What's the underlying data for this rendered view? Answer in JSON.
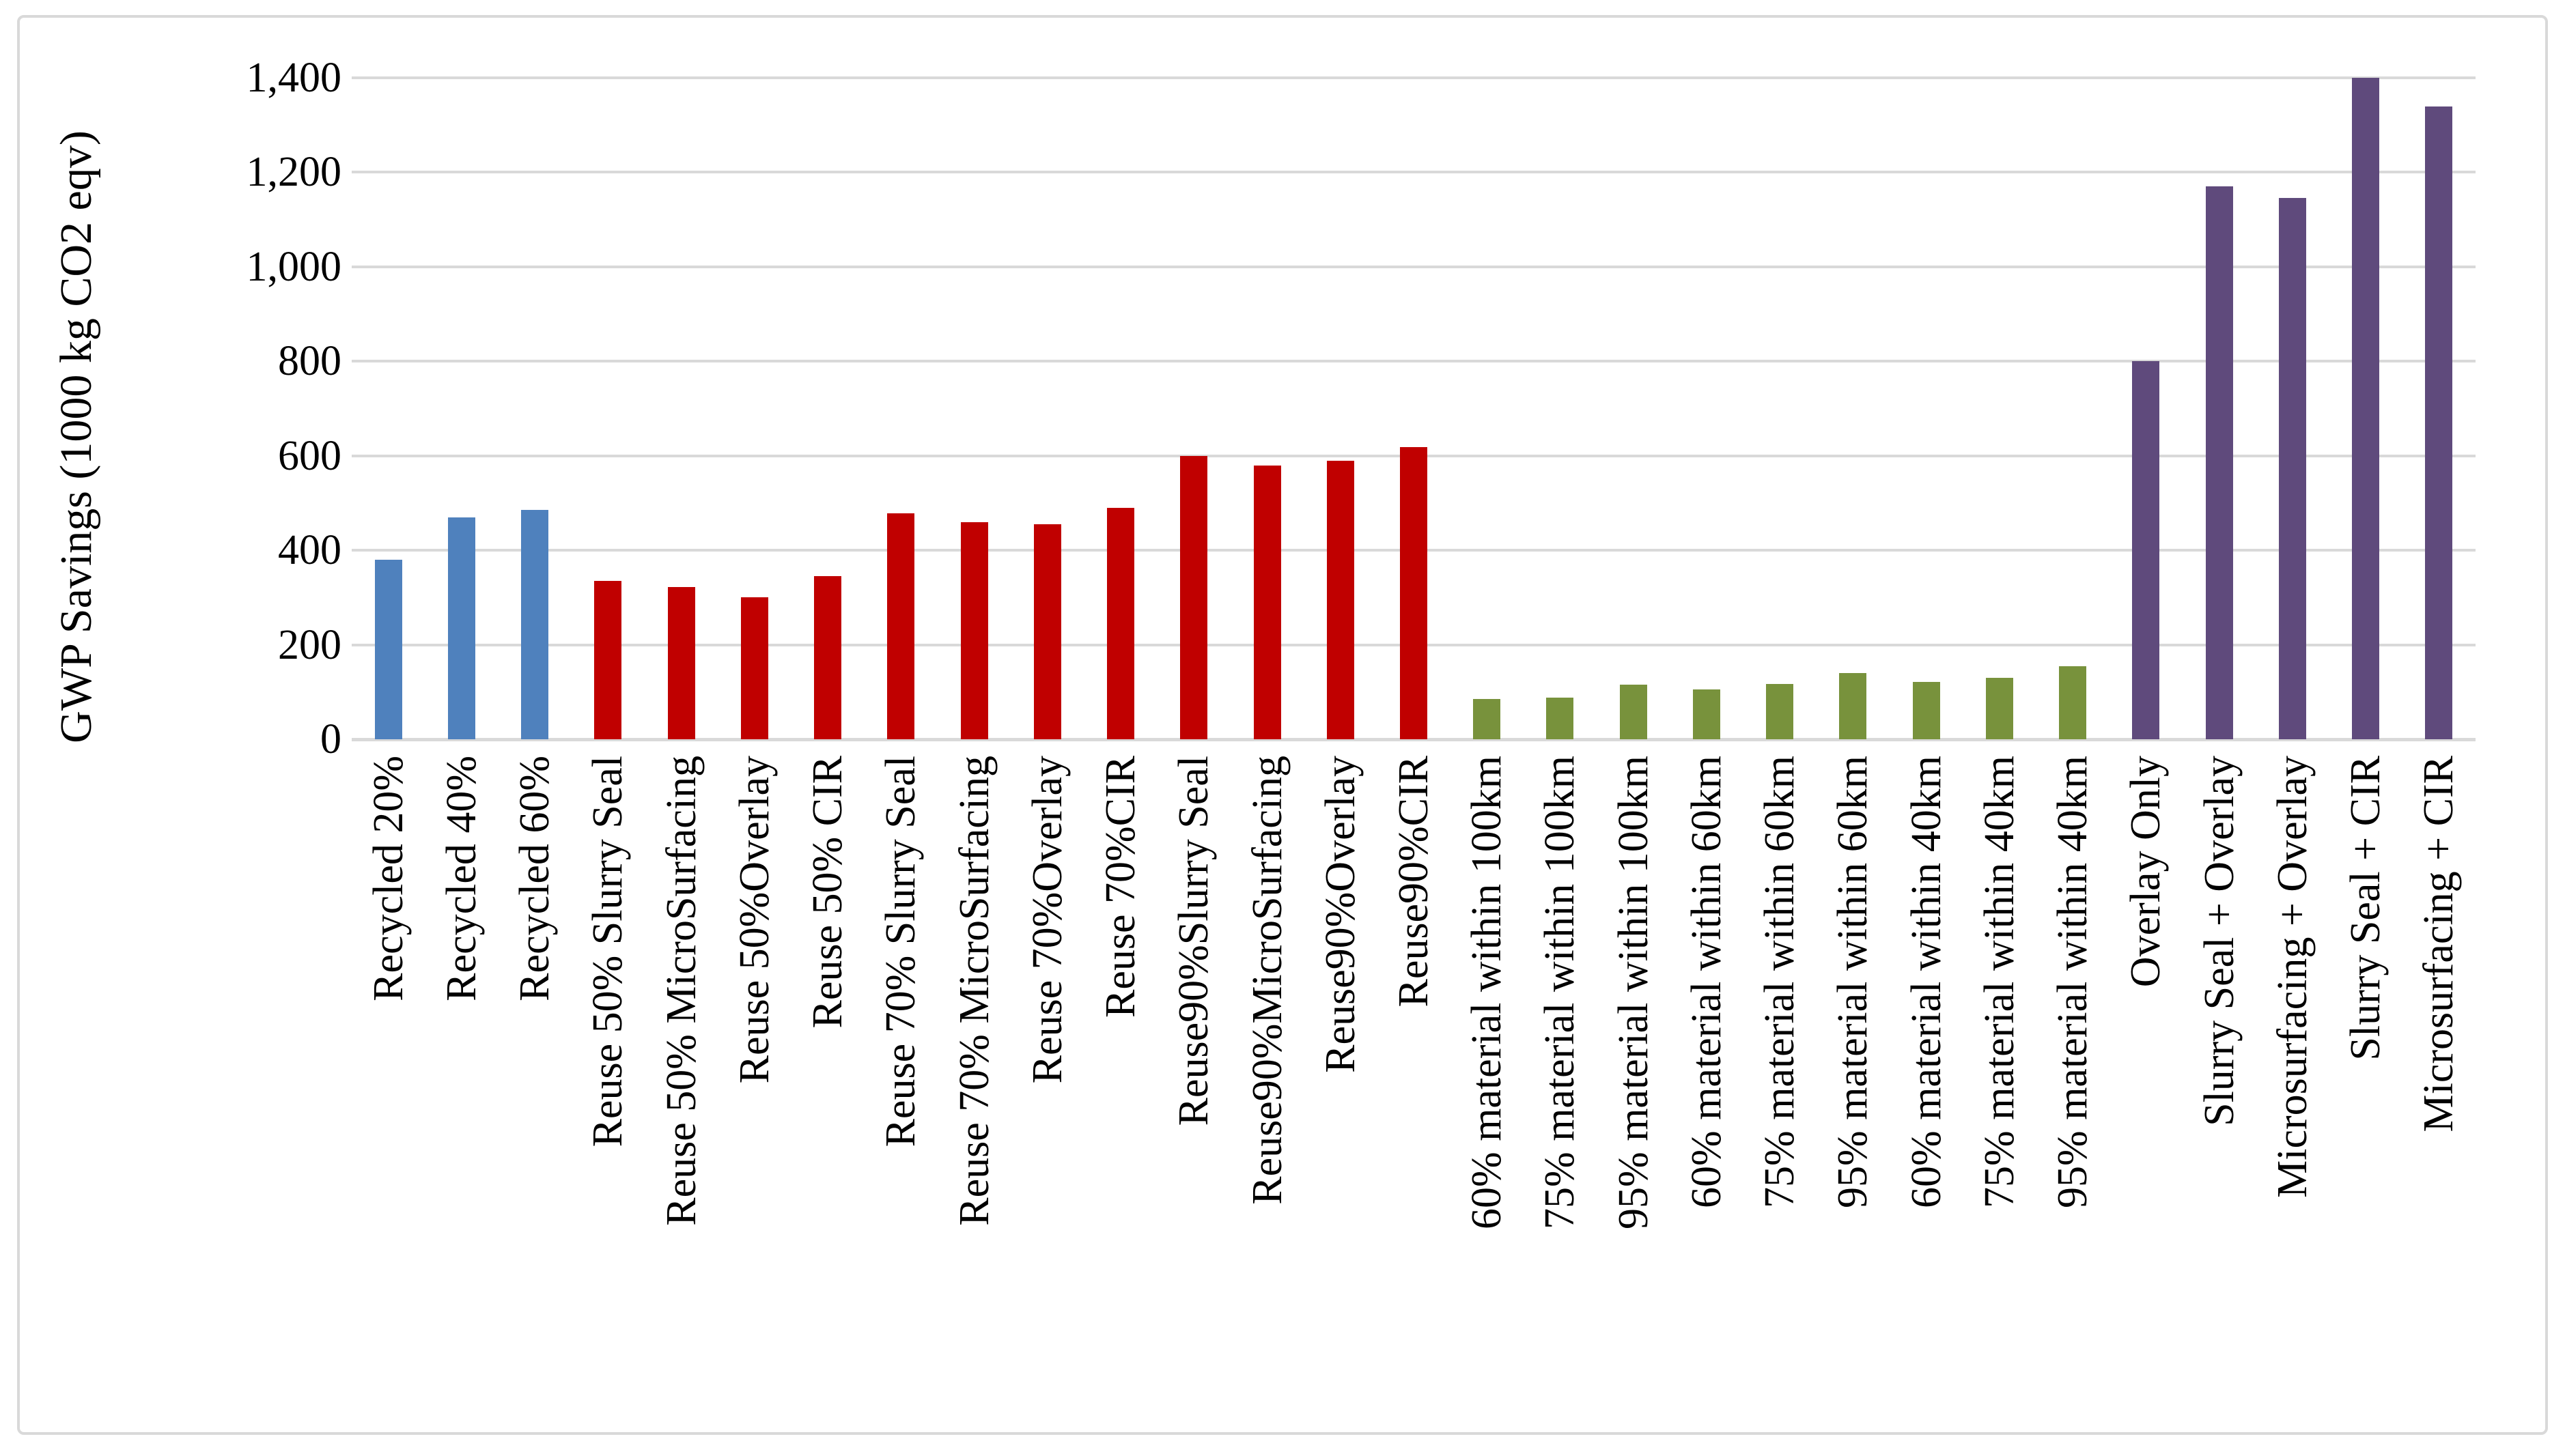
{
  "figure": {
    "background": "#ffffff",
    "border_color": "#d9d9d9"
  },
  "chart_data": {
    "type": "bar",
    "title": "",
    "xlabel": "",
    "ylabel": "GWP Savings (1000 kg CO2 eqv)",
    "ylim": [
      0,
      1400
    ],
    "ytick_values": [
      0,
      200,
      400,
      600,
      800,
      1000,
      1200,
      1400
    ],
    "ytick_labels": [
      "0",
      "200",
      "400",
      "600",
      "800",
      "1,000",
      "1,200",
      "1,400"
    ],
    "grid": "horizontal",
    "gridline_color": "#d9d9d9",
    "legend": "none",
    "bar_groups": [
      {
        "name": "recycled-content",
        "color": "#4f81bd",
        "items": [
          {
            "label": "Recycled 20%",
            "value": 380
          },
          {
            "label": "Recycled 40%",
            "value": 470
          },
          {
            "label": "Recycled 60%",
            "value": 485
          }
        ]
      },
      {
        "name": "reuse",
        "color": "#c00000",
        "items": [
          {
            "label": "Reuse 50% Slurry Seal",
            "value": 335
          },
          {
            "label": "Reuse 50% MicroSurfacing",
            "value": 322
          },
          {
            "label": "Reuse 50%Overlay",
            "value": 300
          },
          {
            "label": "Reuse 50% CIR",
            "value": 345
          },
          {
            "label": "Reuse 70% Slurry Seal",
            "value": 478
          },
          {
            "label": "Reuse 70% MicroSurfacing",
            "value": 460
          },
          {
            "label": "Reuse 70%Overlay",
            "value": 455
          },
          {
            "label": "Reuse 70%CIR",
            "value": 490
          },
          {
            "label": "Reuse90%Slurry Seal",
            "value": 600
          },
          {
            "label": "Reuse90%MicroSurfacing",
            "value": 580
          },
          {
            "label": "Reuse90%Overlay",
            "value": 590
          },
          {
            "label": "Reuse90%CIR",
            "value": 618
          }
        ]
      },
      {
        "name": "local-material",
        "color": "#78923c",
        "items": [
          {
            "label": "60% material within 100km",
            "value": 85
          },
          {
            "label": "75% material within 100km",
            "value": 88
          },
          {
            "label": "95% material within 100km",
            "value": 115
          },
          {
            "label": "60% material within 60km",
            "value": 105
          },
          {
            "label": "75% material within 60km",
            "value": 117
          },
          {
            "label": "95% material within 60km",
            "value": 140
          },
          {
            "label": "60% material within 40km",
            "value": 122
          },
          {
            "label": "75% material within 40km",
            "value": 130
          },
          {
            "label": "95% material within 40km",
            "value": 155
          }
        ]
      },
      {
        "name": "treatment-combination",
        "color": "#5f4a7c",
        "items": [
          {
            "label": "Overlay Only",
            "value": 800
          },
          {
            "label": "Slurry Seal + Overlay",
            "value": 1170
          },
          {
            "label": "Microsurfacing + Overlay",
            "value": 1145
          },
          {
            "label": "Slurry Seal + CIR",
            "value": 1400
          },
          {
            "label": "Microsurfacing + CIR",
            "value": 1340
          }
        ]
      }
    ]
  }
}
